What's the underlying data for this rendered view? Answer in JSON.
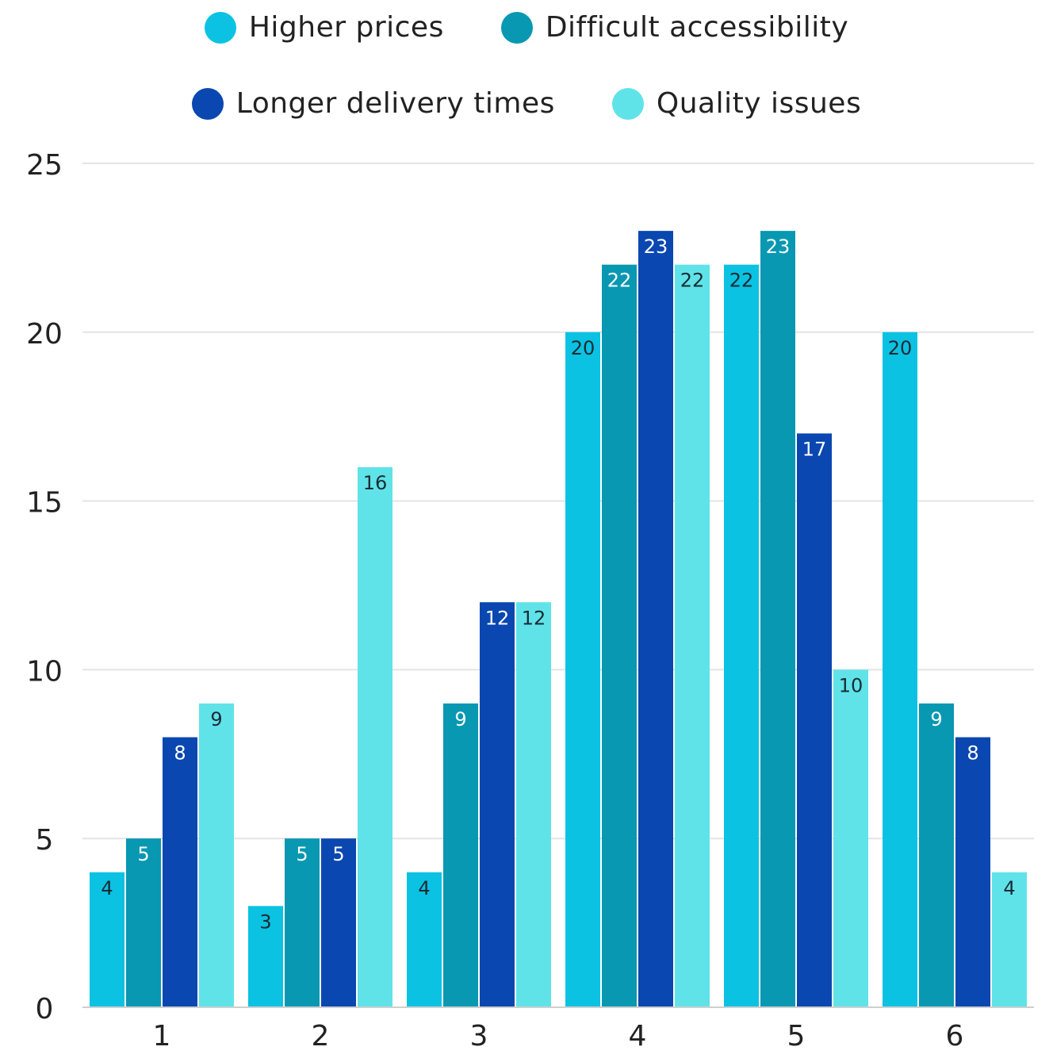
{
  "chart_data": {
    "type": "bar",
    "title": "",
    "xlabel": "",
    "ylabel": "",
    "categories": [
      "1",
      "2",
      "3",
      "4",
      "5",
      "6"
    ],
    "series": [
      {
        "name": "Higher prices",
        "color": "#0BC2E2",
        "label_color": "#1a2a33",
        "values": [
          4,
          3,
          4,
          20,
          22,
          20
        ]
      },
      {
        "name": "Difficult accessibility",
        "color": "#0898B2",
        "label_color": "#ffffff",
        "values": [
          5,
          5,
          9,
          22,
          23,
          9
        ]
      },
      {
        "name": "Longer delivery times",
        "color": "#0A47B0",
        "label_color": "#ffffff",
        "values": [
          8,
          5,
          12,
          23,
          17,
          8
        ]
      },
      {
        "name": "Quality issues",
        "color": "#5FE3E8",
        "label_color": "#1a2a33",
        "values": [
          9,
          16,
          12,
          22,
          10,
          4
        ]
      }
    ],
    "ylim": [
      0,
      25
    ],
    "yticks": [
      "0",
      "5",
      "10",
      "15",
      "20",
      "25"
    ],
    "grid": true,
    "legend_position": "top"
  }
}
